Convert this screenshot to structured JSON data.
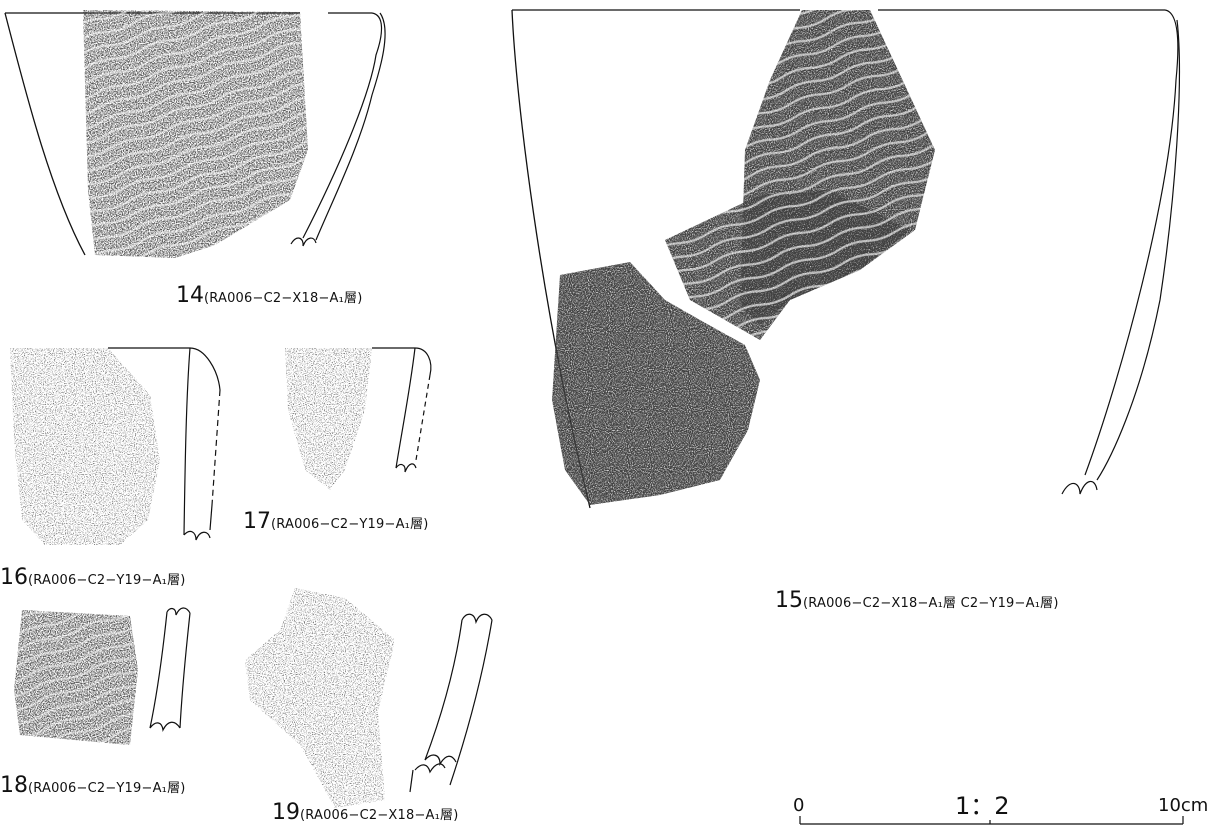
{
  "figures": [
    {
      "id": "14",
      "number": "14",
      "ref": "(RA006−C2−X18−A₁層)"
    },
    {
      "id": "15",
      "number": "15",
      "ref": "(RA006−C2−X18−A₁層 C2−Y19−A₁層)"
    },
    {
      "id": "16",
      "number": "16",
      "ref": "(RA006−C2−Y19−A₁層)"
    },
    {
      "id": "17",
      "number": "17",
      "ref": "(RA006−C2−Y19−A₁層)"
    },
    {
      "id": "18",
      "number": "18",
      "ref": "(RA006−C2−Y19−A₁層)"
    },
    {
      "id": "19",
      "number": "19",
      "ref": "(RA006−C2−X18−A₁層)"
    }
  ],
  "scale": {
    "start_label": "0",
    "ratio_label": "1：2",
    "end_label": "10cm"
  },
  "colors": {
    "ink": "#111111",
    "texture": "#222222",
    "paper": "#ffffff"
  }
}
